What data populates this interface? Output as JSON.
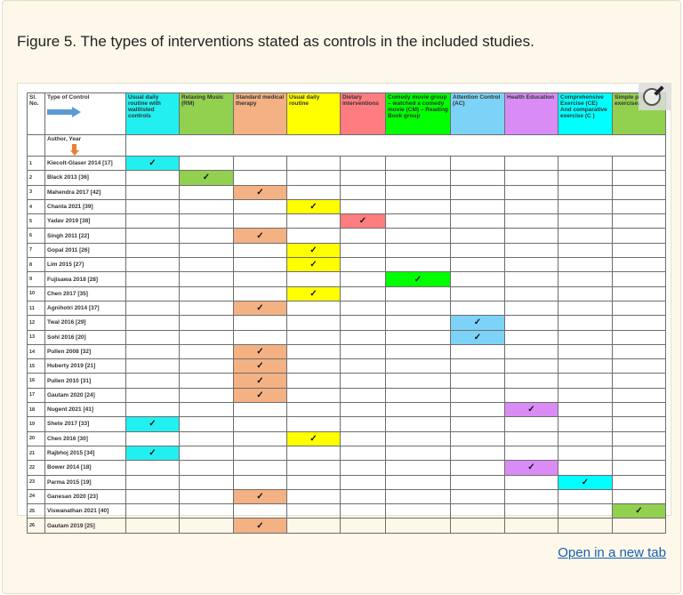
{
  "caption": "Figure 5. The types of interventions stated as controls in the included studies.",
  "open_link": "Open in a new tab",
  "table": {
    "sl_header": "Sl. No.",
    "type_header": "Type of Control",
    "author_header": "Author, Year",
    "check_mark": "✓",
    "columns": [
      {
        "label": "Usual daily routine with waitlisted controls",
        "color": "#22f0f0"
      },
      {
        "label": "Relaxing Music (RM)",
        "color": "#92d050"
      },
      {
        "label": "Standard medical therapy",
        "color": "#f4b183"
      },
      {
        "label": "Usual daily routine",
        "color": "#ffff00"
      },
      {
        "label": "Dietary interventions",
        "color": "#ff7c80"
      },
      {
        "label": "Comedy movie group – watched a comedy movie (CM) – Reading Book group",
        "color": "#00ff00"
      },
      {
        "label": "Attention Control (AC)",
        "color": "#7dd3f7"
      },
      {
        "label": "Health Education",
        "color": "#d98cf5"
      },
      {
        "label": "Comprehensive Exercise (CE) And comparative exercise (C )",
        "color": "#00ffff"
      },
      {
        "label": "Simple physical exercises",
        "color": "#92d050"
      }
    ],
    "rows": [
      {
        "no": "1",
        "author": "Kiecolt-Glaser 2014 [17]",
        "control": 0
      },
      {
        "no": "2",
        "author": "Black 2013 [36]",
        "control": 1
      },
      {
        "no": "3",
        "author": "Mahendra 2017 [42]",
        "control": 2
      },
      {
        "no": "4",
        "author": "Chanta 2021 [39]",
        "control": 3
      },
      {
        "no": "5",
        "author": "Yadav 2019 [38]",
        "control": 4
      },
      {
        "no": "6",
        "author": "Singh 2011 [22]",
        "control": 2
      },
      {
        "no": "7",
        "author": "Gopal 2011 [26]",
        "control": 3
      },
      {
        "no": "8",
        "author": "Lim 2015 [27]",
        "control": 3
      },
      {
        "no": "9",
        "author": "Fujisawa 2018 [28]",
        "control": 5
      },
      {
        "no": "10",
        "author": "Chen 2017 [35]",
        "control": 3
      },
      {
        "no": "11",
        "author": "Agnihotri 2014 [37]",
        "control": 2
      },
      {
        "no": "12",
        "author": "Twal 2016 [29]",
        "control": 6
      },
      {
        "no": "13",
        "author": "Sohl 2016 [20]",
        "control": 6
      },
      {
        "no": "14",
        "author": "Pullen 2008 [32]",
        "control": 2
      },
      {
        "no": "15",
        "author": "Huberty 2019 [21]",
        "control": 2
      },
      {
        "no": "16",
        "author": "Pullen 2010 [31]",
        "control": 2
      },
      {
        "no": "17",
        "author": "Gautam 2020 [24]",
        "control": 2
      },
      {
        "no": "18",
        "author": "Nugent 2021 [41]",
        "control": 7
      },
      {
        "no": "19",
        "author": "Shete 2017 [33]",
        "control": 0
      },
      {
        "no": "20",
        "author": "Chen 2016 [30]",
        "control": 3
      },
      {
        "no": "21",
        "author": "Rajbhoj 2015 [34]",
        "control": 0
      },
      {
        "no": "22",
        "author": "Bower 2014 [18]",
        "control": 7
      },
      {
        "no": "23",
        "author": "Parma 2015 [19]",
        "control": 8
      },
      {
        "no": "24",
        "author": "Ganesan 2020 [23]",
        "control": 2
      },
      {
        "no": "25",
        "author": "Viswanathan 2021 [40]",
        "control": 9
      },
      {
        "no": "26",
        "author": "Gautam 2019 [25]",
        "control": 2
      }
    ]
  }
}
